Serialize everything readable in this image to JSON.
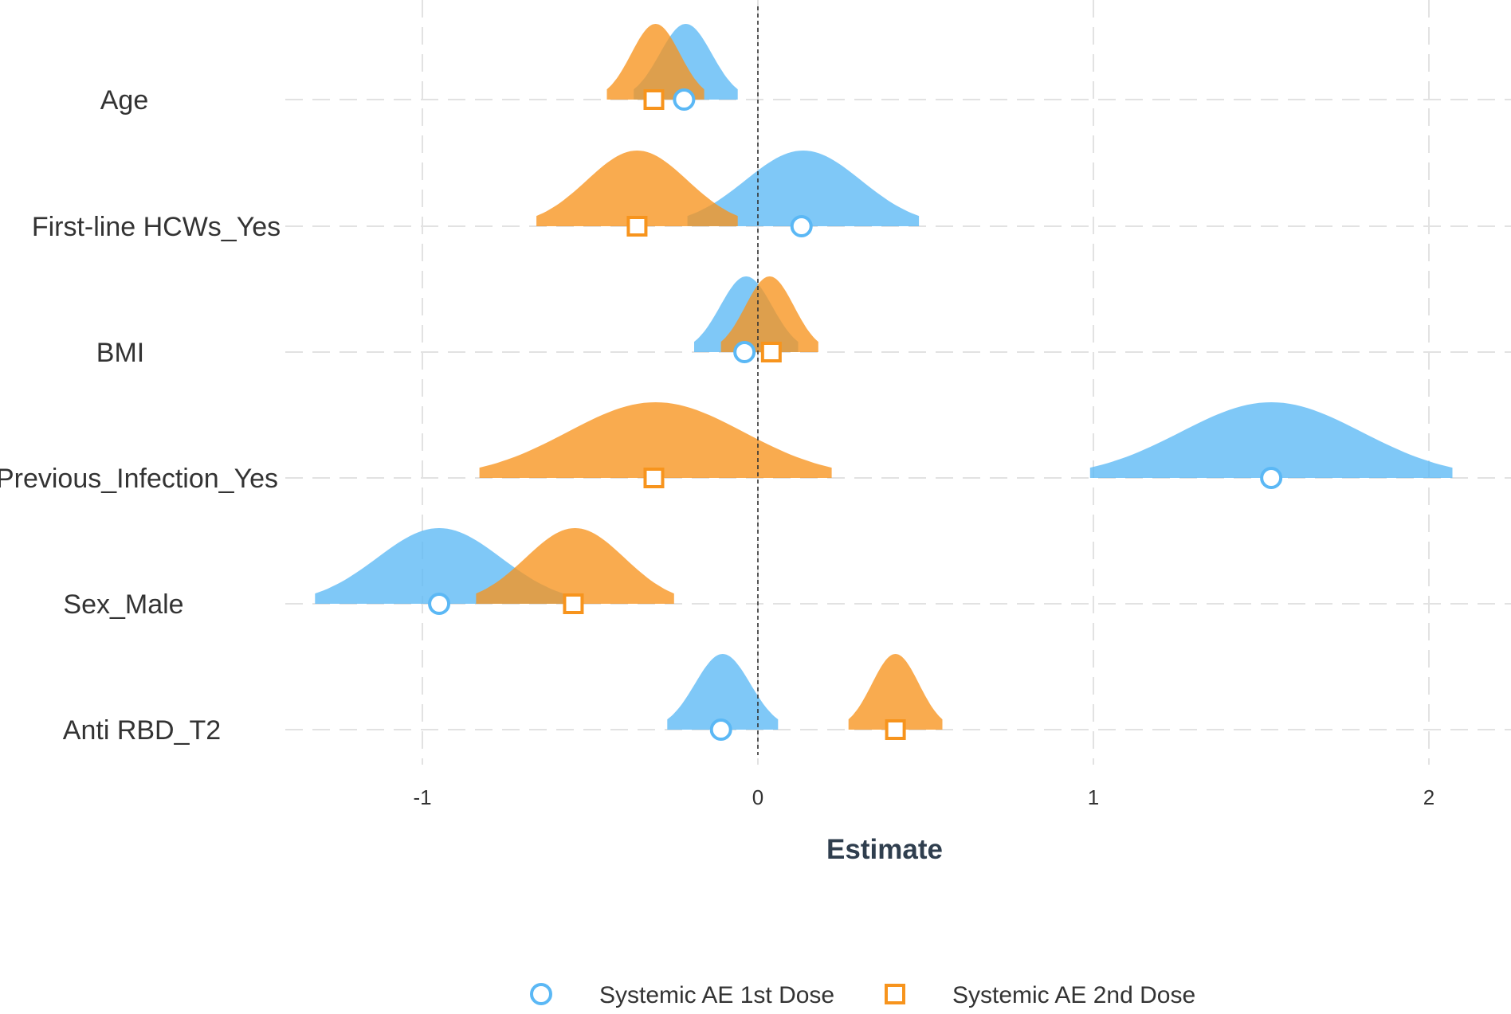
{
  "chart_data": {
    "type": "ridgeline-coefficient",
    "xlabel": "Estimate",
    "xticks": [
      -1,
      0,
      1,
      2
    ],
    "xlim": [
      -1.4,
      2.2
    ],
    "reference_line": 0,
    "grid": true,
    "legend_position": "bottom",
    "categories": [
      "Age",
      "First-line HCWs_Yes",
      "BMI",
      "Previous_Infection_Yes",
      "Sex_Male",
      "Anti RBD_T2"
    ],
    "series": [
      {
        "name": "Systemic AE 1st Dose",
        "color": "#5bb8f5",
        "marker": "circle",
        "estimates": [
          -0.22,
          0.13,
          -0.04,
          1.53,
          -0.95,
          -0.11
        ],
        "range_low": [
          -0.37,
          -0.21,
          -0.19,
          0.99,
          -1.32,
          -0.27
        ],
        "range_high": [
          -0.06,
          0.48,
          0.12,
          2.07,
          -0.58,
          0.06
        ]
      },
      {
        "name": "Systemic AE 2nd Dose",
        "color": "#f7941d",
        "marker": "square",
        "estimates": [
          -0.31,
          -0.36,
          0.04,
          -0.31,
          -0.55,
          0.41
        ],
        "range_low": [
          -0.45,
          -0.66,
          -0.11,
          -0.83,
          -0.84,
          0.27
        ],
        "range_high": [
          -0.16,
          -0.06,
          0.18,
          0.22,
          -0.25,
          0.55
        ]
      }
    ]
  }
}
